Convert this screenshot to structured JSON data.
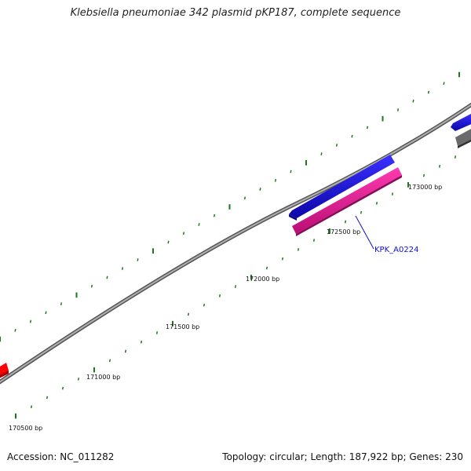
{
  "header": {
    "title": "Klebsiella pneumoniae 342 plasmid pKP187, complete sequence"
  },
  "footer": {
    "accession": "Accession: NC_011282",
    "summary": "Topology: circular; Length: 187,922 bp; Genes: 230"
  },
  "scale": {
    "labels": [
      "170500 bp",
      "171000 bp",
      "171500 bp",
      "172000 bp",
      "172500 bp",
      "173000 bp"
    ]
  },
  "features": {
    "labeled_gene": "KPK_A0224"
  },
  "colors": {
    "forward_gene": "#1a10e6",
    "reverse_gene": "#e8189a",
    "red_feature": "#ff0000",
    "gray_feature": "#666666",
    "tick": "#1a7a1a",
    "backbone": "#8a8a8a"
  }
}
